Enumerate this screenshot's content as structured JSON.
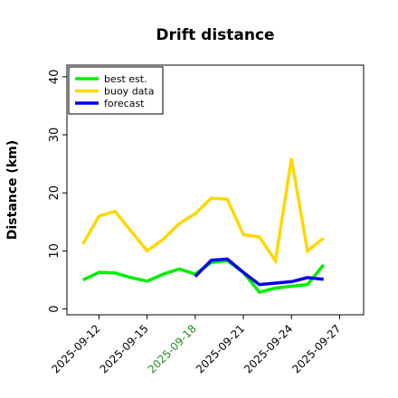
{
  "chart_data": {
    "type": "line",
    "title": "Drift distance",
    "xlabel": "",
    "ylabel": "Distance (km)",
    "ylim": [
      -1,
      42
    ],
    "xlim": [
      "2025-09-10T00:00",
      "2025-09-28T12:00"
    ],
    "yticks": [
      0,
      10,
      20,
      30,
      40
    ],
    "xticks": [
      {
        "label": "2025-09-12",
        "date": "2025-09-12",
        "color": "#000000"
      },
      {
        "label": "2025-09-15",
        "date": "2025-09-15",
        "color": "#000000"
      },
      {
        "label": "2025-09-18",
        "date": "2025-09-18",
        "color": "#228B22"
      },
      {
        "label": "2025-09-21",
        "date": "2025-09-21",
        "color": "#000000"
      },
      {
        "label": "2025-09-24",
        "date": "2025-09-24",
        "color": "#000000"
      },
      {
        "label": "2025-09-27",
        "date": "2025-09-27",
        "color": "#000000"
      }
    ],
    "legend_position": "top-left",
    "grid": false,
    "series": [
      {
        "name": "best est.",
        "color": "#00ee00",
        "points": [
          [
            "2025-09-11T00:00",
            5.0
          ],
          [
            "2025-09-12T00:00",
            6.3
          ],
          [
            "2025-09-13T00:00",
            6.2
          ],
          [
            "2025-09-14T00:00",
            5.4
          ],
          [
            "2025-09-15T00:00",
            4.8
          ],
          [
            "2025-09-16T00:00",
            6.0
          ],
          [
            "2025-09-17T00:00",
            6.9
          ],
          [
            "2025-09-18T00:00",
            6.0
          ],
          [
            "2025-09-19T00:00",
            8.0
          ],
          [
            "2025-09-20T00:00",
            8.3
          ],
          [
            "2025-09-21T00:00",
            6.3
          ],
          [
            "2025-09-22T00:00",
            2.9
          ],
          [
            "2025-09-23T00:00",
            3.6
          ],
          [
            "2025-09-24T00:00",
            3.9
          ],
          [
            "2025-09-25T00:00",
            4.2
          ],
          [
            "2025-09-26T00:00",
            7.6
          ]
        ]
      },
      {
        "name": "buoy data",
        "color": "#ffd700",
        "points": [
          [
            "2025-09-11T00:00",
            11.2
          ],
          [
            "2025-09-12T00:00",
            16.0
          ],
          [
            "2025-09-13T00:00",
            16.8
          ],
          [
            "2025-09-15T00:00",
            10.0
          ],
          [
            "2025-09-16T00:00",
            12.0
          ],
          [
            "2025-09-17T00:00",
            14.7
          ],
          [
            "2025-09-18T00:00",
            16.4
          ],
          [
            "2025-09-19T00:00",
            19.1
          ],
          [
            "2025-09-20T00:00",
            18.9
          ],
          [
            "2025-09-21T00:00",
            12.8
          ],
          [
            "2025-09-22T00:00",
            12.4
          ],
          [
            "2025-09-23T00:00",
            8.3
          ],
          [
            "2025-09-24T00:00",
            25.9
          ],
          [
            "2025-09-25T00:00",
            10.0
          ],
          [
            "2025-09-26T00:00",
            12.2
          ]
        ]
      },
      {
        "name": "forecast",
        "color": "#0000ee",
        "points": [
          [
            "2025-09-18T00:00",
            5.6
          ],
          [
            "2025-09-19T00:00",
            8.4
          ],
          [
            "2025-09-20T00:00",
            8.6
          ],
          [
            "2025-09-21T00:00",
            6.3
          ],
          [
            "2025-09-22T00:00",
            4.2
          ],
          [
            "2025-09-24T00:00",
            4.7
          ],
          [
            "2025-09-25T00:00",
            5.4
          ],
          [
            "2025-09-26T00:00",
            5.1
          ]
        ]
      }
    ]
  }
}
